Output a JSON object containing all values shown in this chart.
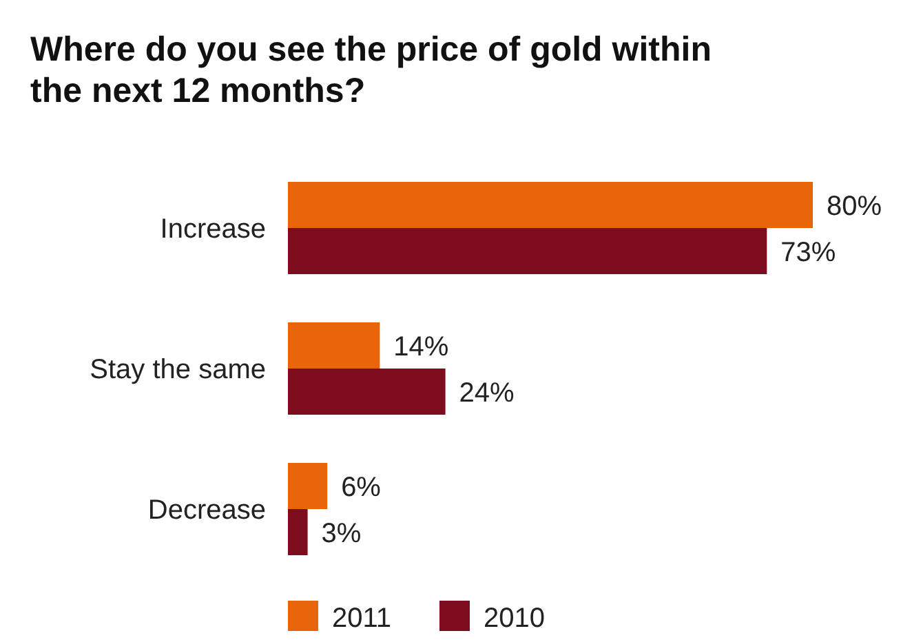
{
  "chart_data": {
    "type": "bar",
    "orientation": "horizontal",
    "title": "Where do you see the price of gold within the next 12 months?",
    "categories": [
      "Increase",
      "Stay the same",
      "Decrease"
    ],
    "series": [
      {
        "name": "2011",
        "color": "#e8650a",
        "values": [
          80,
          14,
          6
        ],
        "value_labels": [
          "80%",
          "14%",
          "6%"
        ]
      },
      {
        "name": "2010",
        "color": "#7d0c1e",
        "values": [
          73,
          24,
          3
        ],
        "value_labels": [
          "73%",
          "24%",
          "3%"
        ]
      }
    ],
    "legend": "bottom"
  }
}
